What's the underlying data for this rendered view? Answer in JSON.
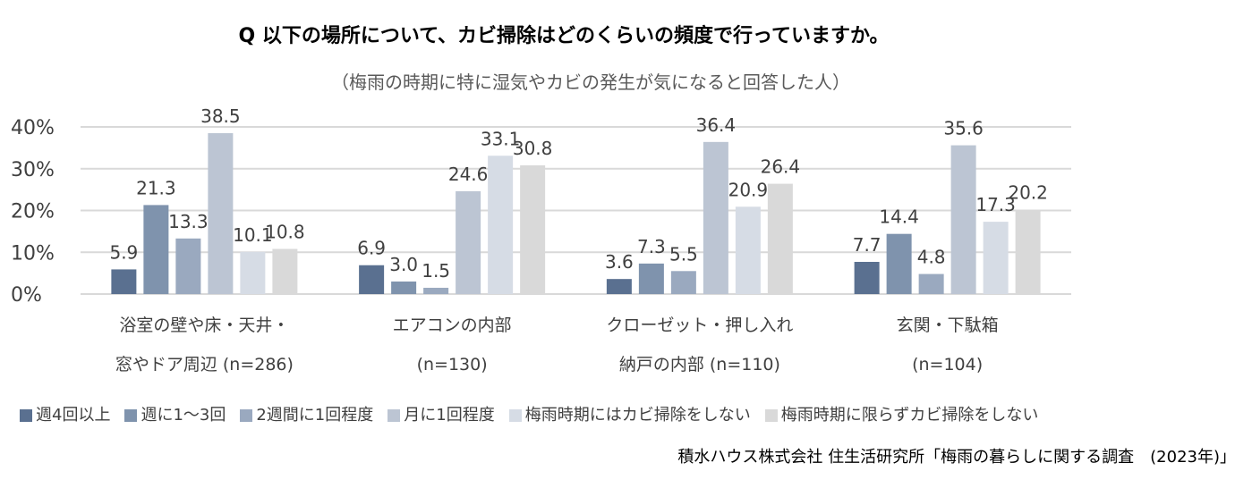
{
  "chart_data": {
    "type": "bar",
    "title": "Q 以下の場所について、カビ掃除はどのくらいの頻度で行っていますか。",
    "subtitle": "（梅雨の時期に特に湿気やカビの発生が気になると回答した人）",
    "categories": [
      [
        "浴室の壁や床・天井・",
        "窓やドア周辺 (n=286)"
      ],
      [
        "エアコンの内部",
        "(n=130)"
      ],
      [
        "クローゼット・押し入れ",
        "納戸の内部 (n=110)"
      ],
      [
        "玄関・下駄箱",
        "(n=104)"
      ]
    ],
    "yticks": [
      "0%",
      "10%",
      "20%",
      "30%",
      "40%"
    ],
    "ylim": [
      0,
      40
    ],
    "grid": true,
    "legend_position": "bottom",
    "series": [
      {
        "name": "週4回以上",
        "color": "#5a7090",
        "values": [
          5.9,
          6.9,
          3.6,
          7.7
        ]
      },
      {
        "name": "週に1～3回",
        "color": "#7f93ad",
        "values": [
          21.3,
          3.0,
          7.3,
          14.4
        ]
      },
      {
        "name": "2週間に1回程度",
        "color": "#9aa9bf",
        "values": [
          13.3,
          1.5,
          5.5,
          4.8
        ]
      },
      {
        "name": "月に1回程度",
        "color": "#bcc5d3",
        "values": [
          38.5,
          24.6,
          36.4,
          35.6
        ]
      },
      {
        "name": "梅雨時期にはカビ掃除をしない",
        "color": "#d6dce5",
        "values": [
          10.1,
          33.1,
          20.9,
          17.3
        ]
      },
      {
        "name": "梅雨時期に限らずカビ掃除をしない",
        "color": "#d9d9d9",
        "values": [
          10.8,
          30.8,
          26.4,
          20.2
        ]
      }
    ]
  },
  "source": "積水ハウス株式会社 住生活研究所「梅雨の暮らしに関する調査　(2023年)」"
}
